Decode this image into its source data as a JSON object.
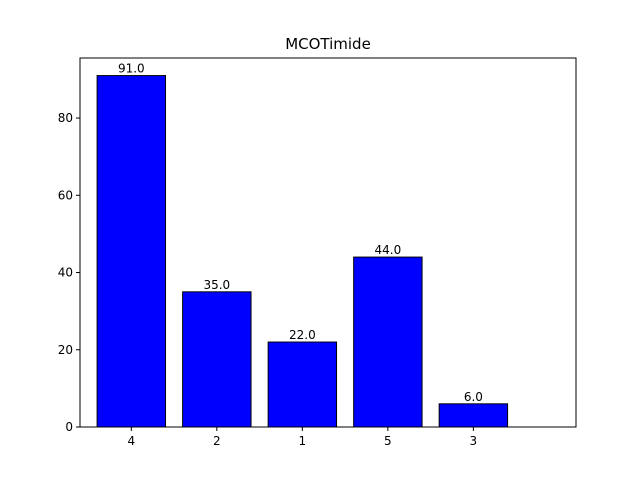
{
  "chart_data": {
    "type": "bar",
    "title": "MCOTimide",
    "categories": [
      "4",
      "2",
      "1",
      "5",
      "3"
    ],
    "values": [
      91.0,
      35.0,
      22.0,
      44.0,
      6.0
    ],
    "value_labels": [
      "91.0",
      "35.0",
      "22.0",
      "44.0",
      "6.0"
    ],
    "xlabel": "",
    "ylabel": "",
    "ylim": [
      0,
      95.55
    ],
    "yticks": [
      0,
      20,
      40,
      60,
      80
    ],
    "ytick_labels": [
      "0",
      "20",
      "40",
      "60",
      "80"
    ],
    "grid": false,
    "colors": {
      "bar_fill": "#0000ff",
      "bar_edge": "#000000",
      "axes": "#000000",
      "background": "#ffffff"
    }
  }
}
